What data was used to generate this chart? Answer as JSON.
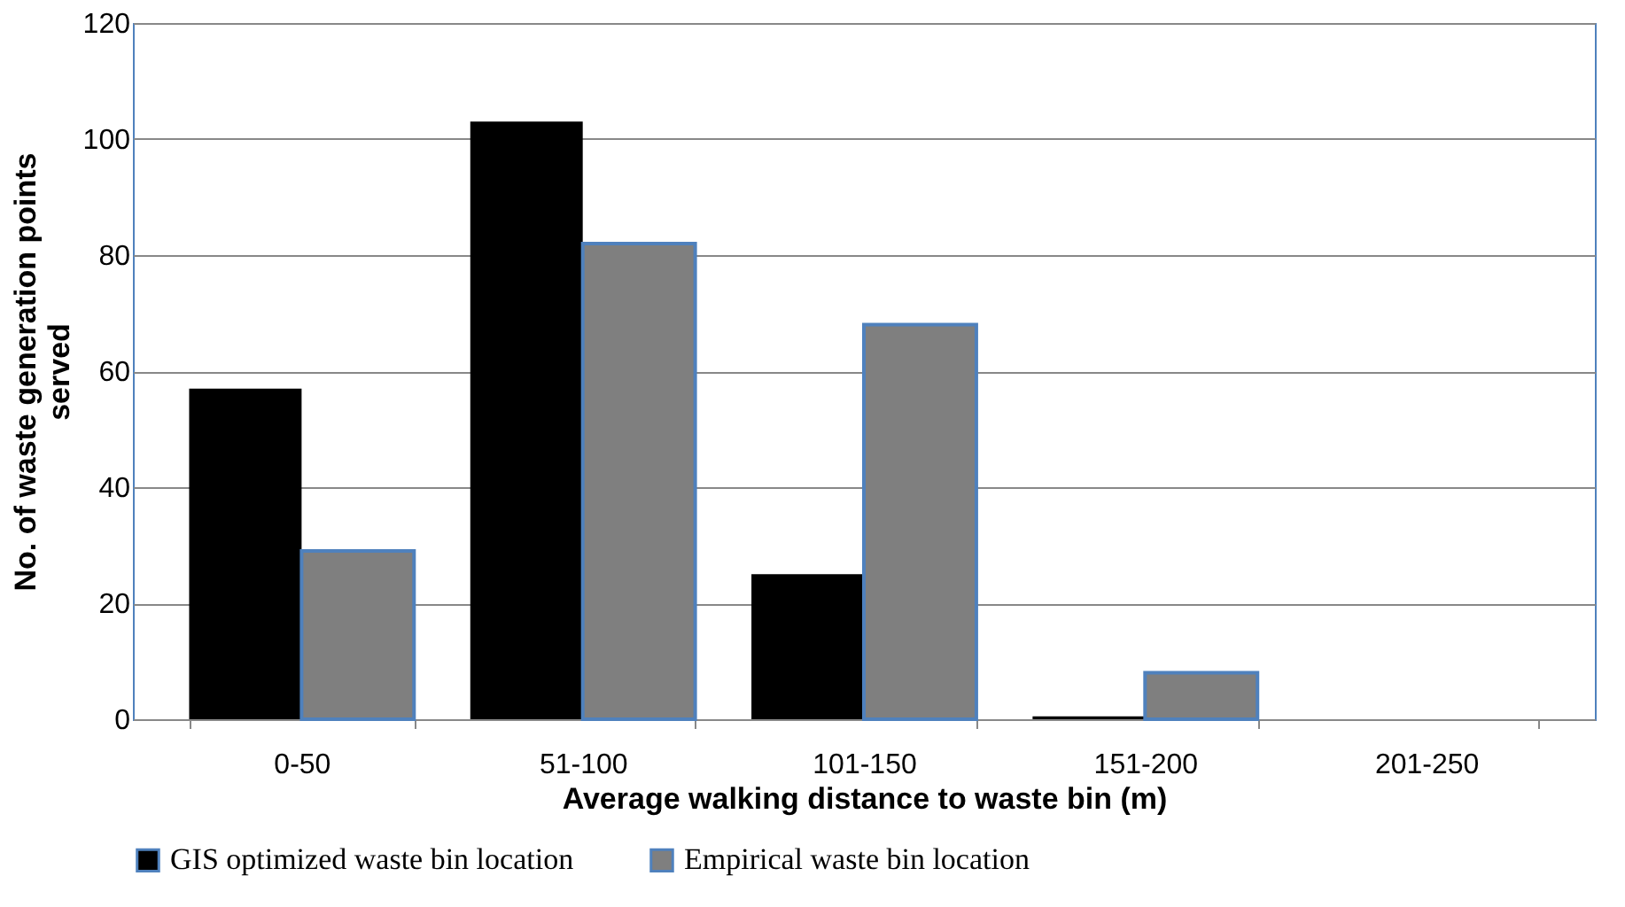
{
  "chart_data": {
    "type": "bar",
    "xlabel": "Average walking distance to waste bin (m)",
    "ylabel": "No. of waste generation points served",
    "categories": [
      "0-50",
      "51-100",
      "101-150",
      "151-200",
      "201-250"
    ],
    "series": [
      {
        "name": "GIS optimized waste bin location",
        "color": "#000000",
        "values": [
          57,
          103,
          25,
          0.5,
          0
        ]
      },
      {
        "name": "Empirical waste bin location",
        "color": "#7f7f7f",
        "values": [
          29,
          82,
          68,
          8,
          0
        ]
      }
    ],
    "ylim": [
      0,
      120
    ],
    "yticks": [
      0,
      20,
      40,
      60,
      80,
      100,
      120
    ],
    "grid": "y",
    "legend": "bottom"
  }
}
